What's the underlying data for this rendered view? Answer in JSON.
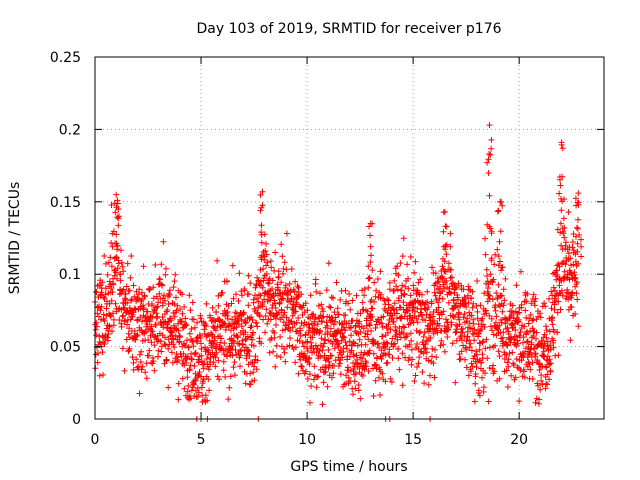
{
  "chart_data": {
    "type": "scatter",
    "title": "Day 103 of 2019, SRMTID for receiver p176",
    "xlabel": "GPS time / hours",
    "ylabel": "SRMTID / TECUs",
    "xlim": [
      0,
      24
    ],
    "ylim": [
      0,
      0.25
    ],
    "x_ticks": [
      0,
      5,
      10,
      15,
      20
    ],
    "x_tick_labels": [
      "0",
      "5",
      "10",
      "15",
      "20"
    ],
    "y_ticks": [
      0,
      0.05,
      0.1,
      0.15,
      0.2,
      0.25
    ],
    "y_tick_labels": [
      "0",
      "0.05",
      "0.1",
      "0.15",
      "0.2",
      "0.25"
    ],
    "grid": true,
    "marker": "+",
    "color": "#ff0000",
    "series": [
      {
        "name": "SRMTID",
        "point_count": 2400,
        "x_range": [
          0,
          22.8
        ],
        "baseline_mean": 0.06,
        "notes": "dense scatter of per-epoch values; mostly 0.02-0.10 with spikes",
        "peaks": [
          {
            "x": 1.0,
            "y": 0.155
          },
          {
            "x": 7.9,
            "y": 0.157
          },
          {
            "x": 18.6,
            "y": 0.203
          },
          {
            "x": 19.1,
            "y": 0.15
          },
          {
            "x": 22.0,
            "y": 0.191
          },
          {
            "x": 22.8,
            "y": 0.148
          },
          {
            "x": 13.0,
            "y": 0.135
          },
          {
            "x": 16.5,
            "y": 0.143
          }
        ],
        "zero_points": [
          4.8,
          5.0,
          5.3,
          7.7,
          13.7,
          13.9,
          15.8
        ]
      }
    ]
  }
}
